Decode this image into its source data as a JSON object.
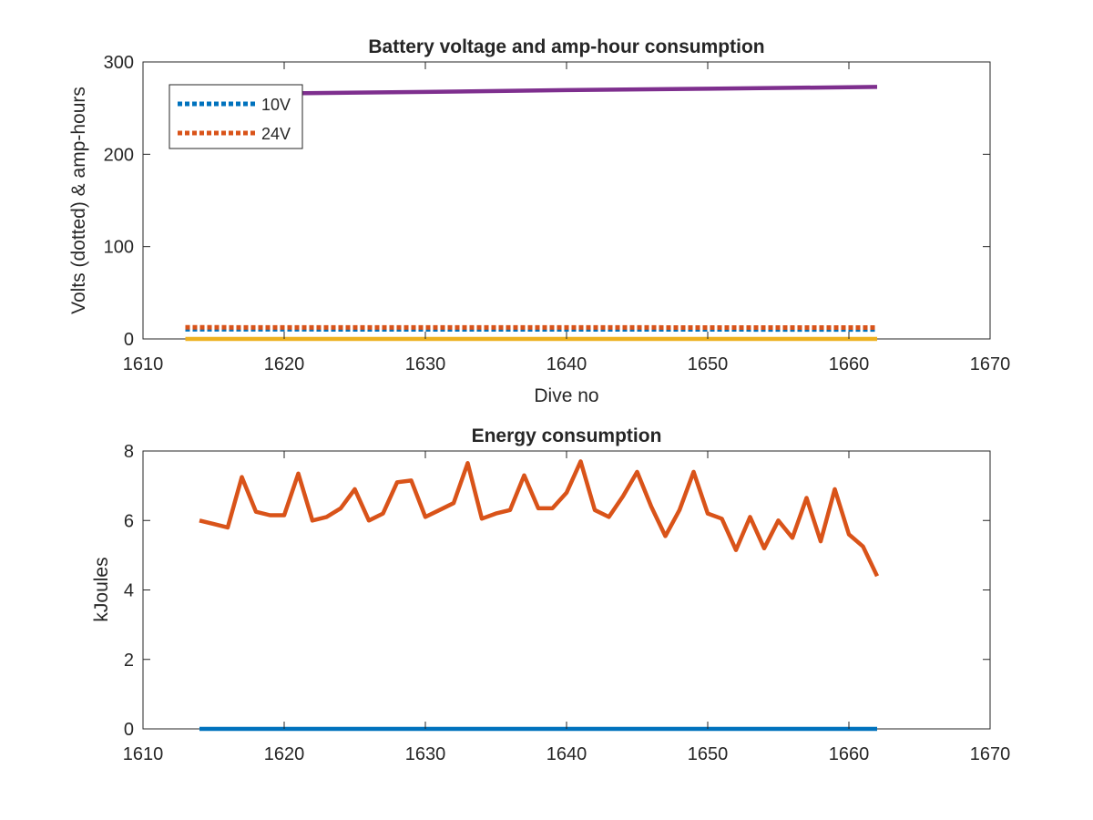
{
  "chart_data": [
    {
      "type": "line",
      "title": "Battery voltage and amp-hour consumption",
      "xlabel": "Dive no",
      "ylabel": "Volts (dotted) & amp-hours",
      "xlim": [
        1610,
        1670
      ],
      "ylim": [
        0,
        300
      ],
      "xticks": [
        1610,
        1620,
        1630,
        1640,
        1650,
        1660,
        1670
      ],
      "yticks": [
        0,
        100,
        200,
        300
      ],
      "grid": false,
      "legend_position": "top-left",
      "series": [
        {
          "name": "10V",
          "style": "dotted",
          "color": "#0072BD",
          "x": [
            1613,
            1662
          ],
          "y": [
            10.5,
            10.3
          ]
        },
        {
          "name": "24V",
          "style": "dotted",
          "color": "#D95319",
          "x": [
            1613,
            1662
          ],
          "y": [
            12.5,
            12.3
          ]
        },
        {
          "style": "solid",
          "color": "#EDB120",
          "x": [
            1613,
            1662
          ],
          "y": [
            0,
            0
          ]
        },
        {
          "style": "solid",
          "color": "#7E2F8E",
          "x": [
            1613,
            1620,
            1630,
            1640,
            1650,
            1662
          ],
          "y": [
            263,
            266,
            267.5,
            269.5,
            271,
            273
          ]
        }
      ]
    },
    {
      "type": "line",
      "title": "Energy consumption",
      "xlabel": "",
      "ylabel": "kJoules",
      "xlim": [
        1610,
        1670
      ],
      "ylim": [
        0,
        8
      ],
      "xticks": [
        1610,
        1620,
        1630,
        1640,
        1650,
        1660,
        1670
      ],
      "yticks": [
        0,
        2,
        4,
        6,
        8
      ],
      "grid": false,
      "series": [
        {
          "style": "solid",
          "color": "#0072BD",
          "x": [
            1614,
            1662
          ],
          "y": [
            0,
            0
          ]
        },
        {
          "style": "solid",
          "color": "#D95319",
          "x": [
            1614,
            1615,
            1616,
            1617,
            1618,
            1619,
            1620,
            1621,
            1622,
            1623,
            1624,
            1625,
            1626,
            1627,
            1628,
            1629,
            1630,
            1631,
            1632,
            1633,
            1634,
            1635,
            1636,
            1637,
            1638,
            1639,
            1640,
            1641,
            1642,
            1643,
            1644,
            1645,
            1646,
            1647,
            1648,
            1649,
            1650,
            1651,
            1652,
            1653,
            1654,
            1655,
            1656,
            1657,
            1658,
            1659,
            1660,
            1661,
            1662
          ],
          "y": [
            6.0,
            5.9,
            5.8,
            7.25,
            6.25,
            6.15,
            6.15,
            7.35,
            6.0,
            6.1,
            6.35,
            6.9,
            6.0,
            6.2,
            7.1,
            7.15,
            6.1,
            6.3,
            6.5,
            7.65,
            6.05,
            6.2,
            6.3,
            7.3,
            6.35,
            6.35,
            6.8,
            7.7,
            6.3,
            6.1,
            6.7,
            7.4,
            6.4,
            5.55,
            6.3,
            7.4,
            6.2,
            6.05,
            5.15,
            6.1,
            5.2,
            6.0,
            5.5,
            6.65,
            5.4,
            6.9,
            5.6,
            5.25,
            4.4
          ]
        }
      ]
    }
  ]
}
